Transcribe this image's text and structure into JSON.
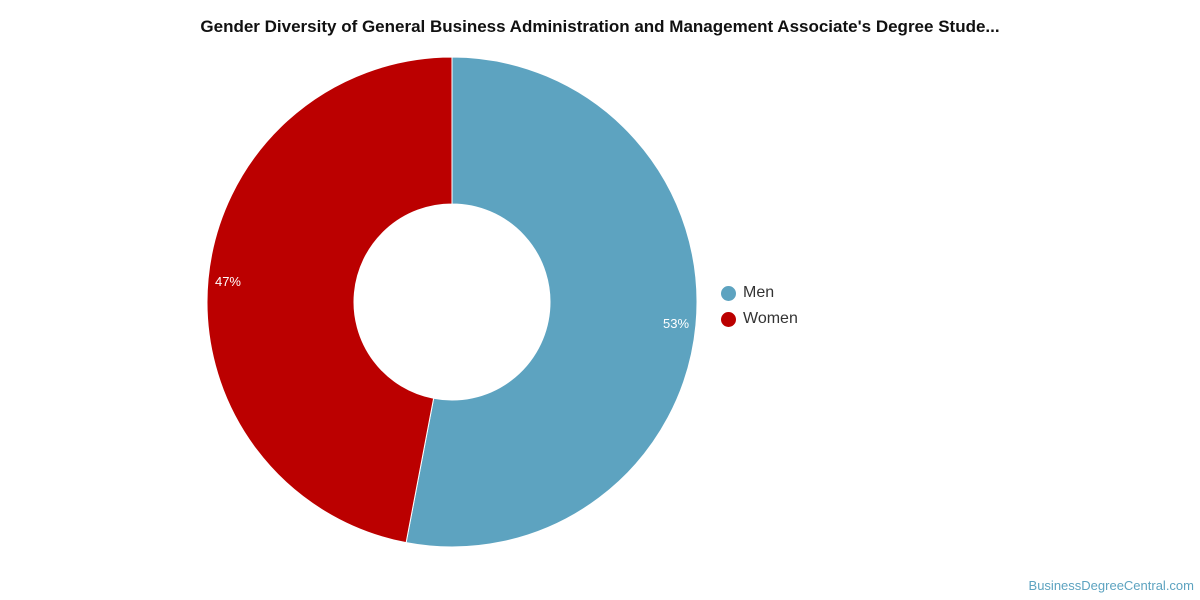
{
  "chart_data": {
    "type": "pie",
    "title": "Gender Diversity of General Business Administration and Management Associate's Degree Stude...",
    "categories": [
      "Men",
      "Women"
    ],
    "values": [
      53,
      47
    ],
    "value_labels": [
      "53%",
      "47%"
    ],
    "colors": [
      "#5da3c0",
      "#bb0000"
    ],
    "donut": true,
    "legend_position": "right"
  },
  "legend": {
    "items": [
      {
        "label": "Men",
        "color": "#5da3c0"
      },
      {
        "label": "Women",
        "color": "#bb0000"
      }
    ]
  },
  "watermark": "BusinessDegreeCentral.com"
}
